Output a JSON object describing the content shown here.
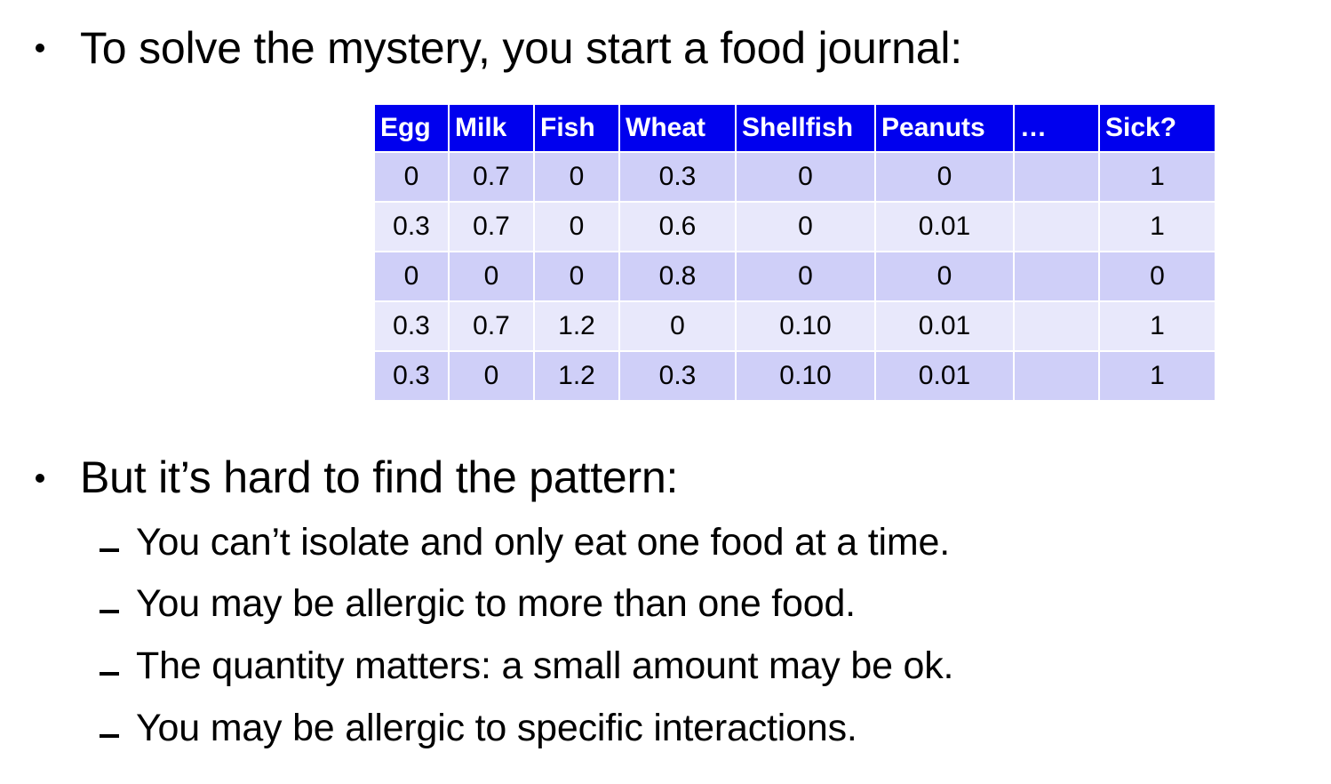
{
  "bullets": {
    "first": "To solve the mystery, you start a food journal:",
    "second": "But it’s hard to find the pattern:"
  },
  "sub_points": [
    "You can’t isolate and only eat one food at a time.",
    "You may be allergic to more than one food.",
    "The quantity matters: a small amount may be ok.",
    "You may be allergic to specific interactions."
  ],
  "table": {
    "headers": [
      "Egg",
      "Milk",
      "Fish",
      "Wheat",
      "Shellfish",
      "Peanuts",
      "…",
      "Sick?"
    ],
    "rows": [
      [
        "0",
        "0.7",
        "0",
        "0.3",
        "0",
        "0",
        "",
        "1"
      ],
      [
        "0.3",
        "0.7",
        "0",
        "0.6",
        "0",
        "0.01",
        "",
        "1"
      ],
      [
        "0",
        "0",
        "0",
        "0.8",
        "0",
        "0",
        "",
        "0"
      ],
      [
        "0.3",
        "0.7",
        "1.2",
        "0",
        "0.10",
        "0.01",
        "",
        "1"
      ],
      [
        "0.3",
        "0",
        "1.2",
        "0.3",
        "0.10",
        "0.01",
        "",
        "1"
      ]
    ]
  },
  "colors": {
    "header_bg": "#0000ee",
    "row_odd_bg": "#cfcff8",
    "row_even_bg": "#e8e8fb"
  }
}
